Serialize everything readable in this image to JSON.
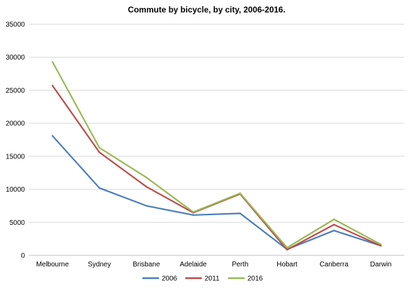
{
  "chart_data": {
    "type": "line",
    "title": "Commute by bicycle, by city, 2006-2016.",
    "xlabel": "",
    "ylabel": "",
    "categories": [
      "Melbourne",
      "Sydney",
      "Brisbane",
      "Adelaide",
      "Perth",
      "Hobart",
      "Canberra",
      "Darwin"
    ],
    "ylim": [
      0,
      35000
    ],
    "yticks": [
      0,
      5000,
      10000,
      15000,
      20000,
      25000,
      30000,
      35000
    ],
    "grid": true,
    "legend_position": "bottom",
    "series": [
      {
        "name": "2006",
        "color": "#4a7ebb",
        "values": [
          18100,
          10200,
          7500,
          6100,
          6350,
          900,
          3750,
          1450
        ]
      },
      {
        "name": "2011",
        "color": "#be4b48",
        "values": [
          25700,
          15600,
          10400,
          6450,
          9300,
          850,
          4650,
          1450
        ]
      },
      {
        "name": "2016",
        "color": "#98b954",
        "values": [
          29300,
          16300,
          11800,
          6550,
          9400,
          1150,
          5450,
          1650
        ]
      }
    ]
  }
}
